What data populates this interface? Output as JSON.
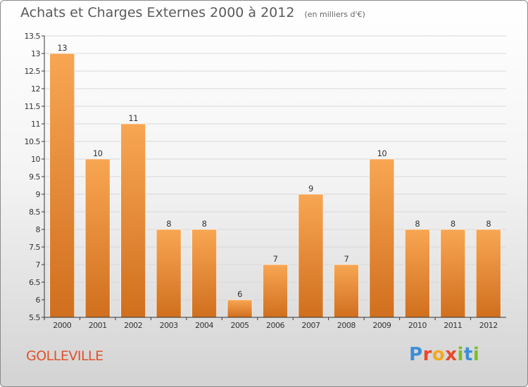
{
  "header": {
    "title": "Achats et Charges Externes 2000 à 2012",
    "subtitle": "(en milliers d'€)"
  },
  "footer": {
    "commune": "GOLLEVILLE",
    "brand_letters": [
      "P",
      "r",
      "o",
      "x",
      "i",
      "t",
      "i"
    ],
    "brand_colors": [
      "#3b8fd6",
      "#e8492a",
      "#f3a81f",
      "#e8492a",
      "#7bbf2a",
      "#3b8fd6",
      "#7bbf2a"
    ]
  },
  "colors": {
    "bar_top": "#f8a653",
    "bar_bottom": "#d06f1e",
    "axis": "#333333",
    "grid": "#d8d8d8"
  },
  "chart_data": {
    "type": "bar",
    "categories": [
      "2000",
      "2001",
      "2002",
      "2003",
      "2004",
      "2005",
      "2006",
      "2007",
      "2008",
      "2009",
      "2010",
      "2011",
      "2012"
    ],
    "values": [
      13,
      10,
      11,
      8,
      8,
      6,
      7,
      9,
      7,
      10,
      8,
      8,
      8
    ],
    "data_labels": [
      "13",
      "10",
      "11",
      "8",
      "8",
      "6",
      "7",
      "9",
      "7",
      "10",
      "8",
      "8",
      "8"
    ],
    "title": "Achats et Charges Externes 2000 à 2012",
    "subtitle": "(en milliers d'€)",
    "xlabel": "",
    "ylabel": "",
    "ylim": [
      5.5,
      13.5
    ],
    "yticks": [
      5.5,
      6,
      6.5,
      7,
      7.5,
      8,
      8.5,
      9,
      9.5,
      10,
      10.5,
      11,
      11.5,
      12,
      12.5,
      13,
      13.5
    ],
    "ytick_labels": [
      "5.5",
      "6",
      "6.5",
      "7",
      "7.5",
      "8",
      "8.5",
      "9",
      "9.5",
      "10",
      "10.5",
      "11",
      "11.5",
      "12",
      "12.5",
      "13",
      "13.5"
    ],
    "grid": true
  }
}
